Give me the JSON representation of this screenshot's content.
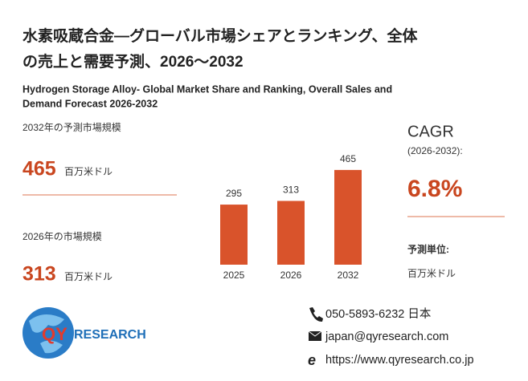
{
  "header": {
    "title_line1": "水素吸蔵合金—グローバル市場シェアとランキング、全体",
    "title_line2": "の売上と需要予測、2026～2032",
    "subtitle_line1": "Hydrogen Storage Alloy- Global Market Share and Ranking, Overall Sales and",
    "subtitle_line2": "Demand Forecast 2026-2032"
  },
  "stats": {
    "forecast_label": "2032年の予測市場規模",
    "forecast_value": 465,
    "forecast_unit": "百万米ドル",
    "current_label": "2026年の市場規模",
    "current_value": 313,
    "current_unit": "百万米ドル"
  },
  "cagr": {
    "title": "CAGR",
    "period": "(2026-2032):",
    "value": "6.8%",
    "unit_label": "予測単位:",
    "unit": "百万米ドル"
  },
  "logo": {
    "mark": "QY",
    "text": "RESEARCH"
  },
  "contacts": {
    "phone": "050-5893-6232 日本",
    "email": "japan@qyresearch.com",
    "web": "https://www.qyresearch.co.jp"
  },
  "chart_data": {
    "type": "bar",
    "categories": [
      "2025",
      "2026",
      "2032"
    ],
    "values": [
      295,
      313,
      465
    ],
    "color": "#d9532b"
  }
}
